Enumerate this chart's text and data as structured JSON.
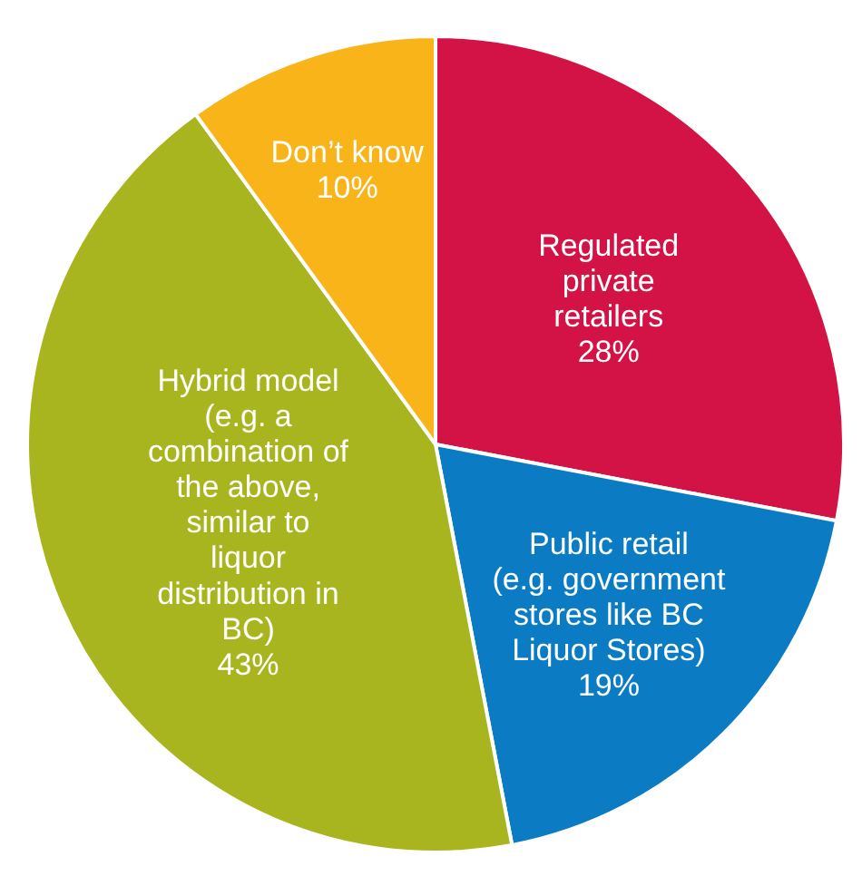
{
  "chart_data": {
    "type": "pie",
    "categories": [
      "Regulated private retailers",
      "Public retail (e.g. government stores like BC Liquor Stores)",
      "Hybrid model (e.g. a combination of the above, similar to liquor distribution in BC)",
      "Don’t know"
    ],
    "values": [
      28,
      19,
      43,
      10
    ],
    "value_labels": [
      "28%",
      "19%",
      "43%",
      "10%"
    ],
    "colors": [
      "#d31245",
      "#0b7cc4",
      "#a9b51f",
      "#f8b418"
    ]
  }
}
